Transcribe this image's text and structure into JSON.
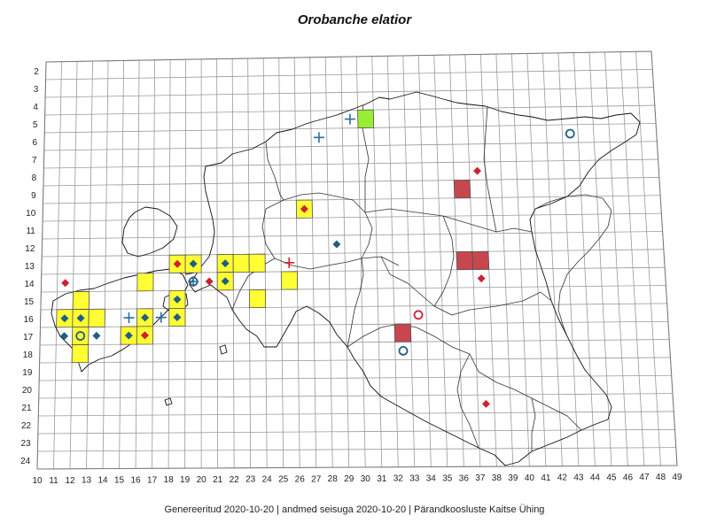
{
  "title": "Orobanche elatior",
  "footer": "Genereeritud 2020-10-20  |  andmed seisuga 2020-10-20  |  Pärandkoosluste Kaitse Ühing",
  "axes": {
    "x_labels": [
      "10",
      "11",
      "12",
      "13",
      "14",
      "15",
      "16",
      "17",
      "18",
      "19",
      "20",
      "21",
      "22",
      "23",
      "24",
      "25",
      "26",
      "27",
      "28",
      "29",
      "30",
      "31",
      "32",
      "33",
      "34",
      "35",
      "36",
      "37",
      "38",
      "39",
      "40",
      "41",
      "42",
      "43",
      "44",
      "45",
      "46",
      "47",
      "48",
      "49"
    ],
    "y_labels": [
      "2",
      "3",
      "4",
      "5",
      "6",
      "7",
      "8",
      "9",
      "10",
      "11",
      "12",
      "13",
      "14",
      "15",
      "16",
      "17",
      "18",
      "19",
      "20",
      "21",
      "22",
      "23",
      "24"
    ]
  },
  "colors": {
    "yellow": "#ffff33",
    "green": "#99ee33",
    "red_square": "#c8474f",
    "diamond_blue": "#1f5f80",
    "diamond_red": "#cc2233",
    "circle_blue": "#1f5f80",
    "circle_red": "#cc2233",
    "plus_blue": "#2a6ea0",
    "plus_red": "#dd2233",
    "grid": "#9a9a9a"
  },
  "squares": [
    {
      "x": 11,
      "y": 16,
      "color": "yellow"
    },
    {
      "x": 12,
      "y": 15,
      "color": "yellow"
    },
    {
      "x": 12,
      "y": 16,
      "color": "yellow"
    },
    {
      "x": 12,
      "y": 17,
      "color": "yellow"
    },
    {
      "x": 12,
      "y": 18,
      "color": "yellow"
    },
    {
      "x": 13,
      "y": 16,
      "color": "yellow"
    },
    {
      "x": 15,
      "y": 17,
      "color": "yellow"
    },
    {
      "x": 16,
      "y": 14,
      "color": "yellow"
    },
    {
      "x": 16,
      "y": 16,
      "color": "yellow"
    },
    {
      "x": 16,
      "y": 17,
      "color": "yellow"
    },
    {
      "x": 18,
      "y": 13,
      "color": "yellow"
    },
    {
      "x": 18,
      "y": 15,
      "color": "yellow"
    },
    {
      "x": 18,
      "y": 16,
      "color": "yellow"
    },
    {
      "x": 19,
      "y": 13,
      "color": "yellow"
    },
    {
      "x": 21,
      "y": 13,
      "color": "yellow"
    },
    {
      "x": 21,
      "y": 14,
      "color": "yellow"
    },
    {
      "x": 22,
      "y": 13,
      "color": "yellow"
    },
    {
      "x": 23,
      "y": 13,
      "color": "yellow"
    },
    {
      "x": 23,
      "y": 15,
      "color": "yellow"
    },
    {
      "x": 25,
      "y": 14,
      "color": "yellow"
    },
    {
      "x": 26,
      "y": 10,
      "color": "yellow"
    },
    {
      "x": 30,
      "y": 5,
      "color": "green"
    },
    {
      "x": 32,
      "y": 17,
      "color": "red_square"
    },
    {
      "x": 36,
      "y": 9,
      "color": "red_square"
    },
    {
      "x": 36,
      "y": 13,
      "color": "red_square"
    },
    {
      "x": 37,
      "y": 13,
      "color": "red_square"
    }
  ],
  "markers": [
    {
      "x": 11,
      "y": 14,
      "type": "diamond",
      "color": "diamond_red"
    },
    {
      "x": 11,
      "y": 17,
      "type": "diamond",
      "color": "diamond_blue"
    },
    {
      "x": 11,
      "y": 16,
      "type": "diamond",
      "color": "diamond_blue"
    },
    {
      "x": 12,
      "y": 16,
      "type": "diamond",
      "color": "diamond_blue"
    },
    {
      "x": 13,
      "y": 17,
      "type": "diamond",
      "color": "diamond_blue"
    },
    {
      "x": 12,
      "y": 17,
      "type": "circle",
      "color": "circle_blue"
    },
    {
      "x": 15,
      "y": 16,
      "type": "plus",
      "color": "plus_blue"
    },
    {
      "x": 15,
      "y": 17,
      "type": "diamond",
      "color": "diamond_blue"
    },
    {
      "x": 16,
      "y": 16,
      "type": "diamond",
      "color": "diamond_blue"
    },
    {
      "x": 16,
      "y": 17,
      "type": "diamond",
      "color": "diamond_red"
    },
    {
      "x": 17,
      "y": 16,
      "type": "plus",
      "color": "plus_blue"
    },
    {
      "x": 18,
      "y": 13,
      "type": "diamond",
      "color": "diamond_red"
    },
    {
      "x": 18,
      "y": 15,
      "type": "diamond",
      "color": "diamond_blue"
    },
    {
      "x": 18,
      "y": 16,
      "type": "diamond",
      "color": "diamond_blue"
    },
    {
      "x": 19,
      "y": 13,
      "type": "diamond",
      "color": "diamond_blue"
    },
    {
      "x": 19,
      "y": 14,
      "type": "circle",
      "color": "circle_blue"
    },
    {
      "x": 19,
      "y": 14,
      "type": "plus",
      "color": "plus_blue"
    },
    {
      "x": 20,
      "y": 14,
      "type": "diamond",
      "color": "diamond_red"
    },
    {
      "x": 21,
      "y": 13,
      "type": "diamond",
      "color": "diamond_blue"
    },
    {
      "x": 21,
      "y": 14,
      "type": "diamond",
      "color": "diamond_blue"
    },
    {
      "x": 25,
      "y": 13,
      "type": "plus",
      "color": "plus_red"
    },
    {
      "x": 26,
      "y": 10,
      "type": "diamond",
      "color": "diamond_red"
    },
    {
      "x": 27,
      "y": 6,
      "type": "plus",
      "color": "plus_blue"
    },
    {
      "x": 29,
      "y": 5,
      "type": "plus",
      "color": "plus_blue"
    },
    {
      "x": 28,
      "y": 12,
      "type": "diamond",
      "color": "diamond_blue"
    },
    {
      "x": 33,
      "y": 16,
      "type": "circle",
      "color": "circle_red"
    },
    {
      "x": 32,
      "y": 18,
      "type": "circle",
      "color": "circle_blue"
    },
    {
      "x": 37,
      "y": 8,
      "type": "diamond",
      "color": "diamond_red"
    },
    {
      "x": 37,
      "y": 14,
      "type": "diamond",
      "color": "diamond_red"
    },
    {
      "x": 37,
      "y": 21,
      "type": "diamond",
      "color": "diamond_red"
    },
    {
      "x": 43,
      "y": 6,
      "type": "circle",
      "color": "circle_blue"
    }
  ]
}
